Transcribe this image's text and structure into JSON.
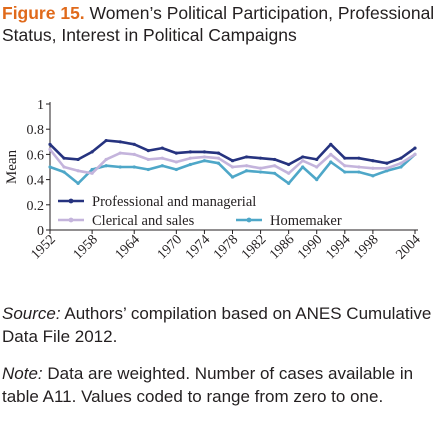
{
  "figure": {
    "label": "Figure 15.",
    "title": " Women’s Political Participation, Professional Status, Interest in Political Campaigns"
  },
  "notes": {
    "source_label": "Source:",
    "source_text": " Authors’ compilation based on ANES Cumulative Data File 2012.",
    "note_label": "Note:",
    "note_text": " Data are weighted. Number of cases available in table A11. Values coded to range from zero to one."
  },
  "chart_data": {
    "type": "line",
    "title": "",
    "xlabel": "",
    "ylabel": "Mean",
    "ylim": [
      0,
      1
    ],
    "yticks": [
      "0",
      "0.2",
      "0.4",
      "0.6",
      "0.8",
      "1"
    ],
    "ytick_values": [
      0,
      0.2,
      0.4,
      0.6,
      0.8,
      1
    ],
    "x": [
      1952,
      1954,
      1956,
      1958,
      1960,
      1962,
      1964,
      1966,
      1968,
      1970,
      1972,
      1974,
      1976,
      1978,
      1980,
      1982,
      1984,
      1986,
      1988,
      1990,
      1992,
      1994,
      1996,
      1998,
      2000,
      2002,
      2004
    ],
    "xtick_labels": [
      "1952",
      "1958",
      "1964",
      "1970",
      "1974",
      "1978",
      "1982",
      "1986",
      "1990",
      "1994",
      "1998",
      "2004"
    ],
    "xtick_values": [
      1952,
      1958,
      1964,
      1970,
      1974,
      1978,
      1982,
      1986,
      1990,
      1994,
      1998,
      2004
    ],
    "grid": false,
    "legend_placement": "bottom inside",
    "series": [
      {
        "name": "Professional and managerial",
        "color": "#26337f",
        "values": [
          0.68,
          0.57,
          0.56,
          0.62,
          0.71,
          0.7,
          0.68,
          0.63,
          0.65,
          0.61,
          0.62,
          0.62,
          0.61,
          0.55,
          0.58,
          0.57,
          0.56,
          0.52,
          0.58,
          0.56,
          0.68,
          0.57,
          0.57,
          0.55,
          0.53,
          0.57,
          0.65
        ]
      },
      {
        "name": "Clerical and sales",
        "color": "#c4b4dc",
        "values": [
          0.64,
          0.5,
          0.47,
          0.45,
          0.56,
          0.61,
          0.6,
          0.56,
          0.57,
          0.54,
          0.57,
          0.58,
          0.57,
          0.5,
          0.51,
          0.49,
          0.51,
          0.45,
          0.55,
          0.5,
          0.6,
          0.51,
          0.5,
          0.49,
          0.49,
          0.53,
          0.6
        ]
      },
      {
        "name": "Homemaker",
        "color": "#4ea7c8",
        "values": [
          0.5,
          0.46,
          0.37,
          0.48,
          0.51,
          0.5,
          0.5,
          0.48,
          0.51,
          0.48,
          0.52,
          0.55,
          0.53,
          0.42,
          0.47,
          0.46,
          0.45,
          0.37,
          0.5,
          0.4,
          0.54,
          0.46,
          0.46,
          0.43,
          0.47,
          0.5,
          0.6
        ]
      }
    ]
  }
}
